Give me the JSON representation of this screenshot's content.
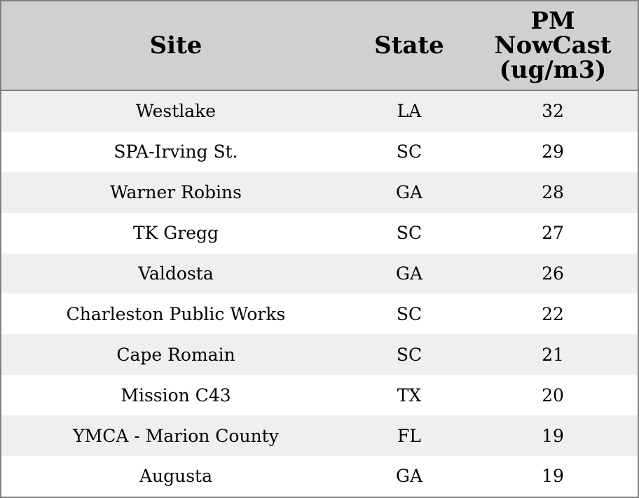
{
  "chart_data": {
    "type": "table",
    "columns": [
      "Site",
      "State",
      "PM\nNowCast\n(ug/m3)"
    ],
    "rows": [
      {
        "site": "Westlake",
        "state": "LA",
        "value": "32"
      },
      {
        "site": "SPA-Irving St.",
        "state": "SC",
        "value": "29"
      },
      {
        "site": "Warner Robins",
        "state": "GA",
        "value": "28"
      },
      {
        "site": "TK Gregg",
        "state": "SC",
        "value": "27"
      },
      {
        "site": "Valdosta",
        "state": "GA",
        "value": "26"
      },
      {
        "site": "Charleston Public Works",
        "state": "SC",
        "value": "22"
      },
      {
        "site": "Cape Romain",
        "state": "SC",
        "value": "21"
      },
      {
        "site": "Mission C43",
        "state": "TX",
        "value": "20"
      },
      {
        "site": "YMCA - Marion County",
        "state": "FL",
        "value": "19"
      },
      {
        "site": "Augusta",
        "state": "GA",
        "value": "19"
      }
    ],
    "header_color": "#d0d0d0",
    "stripe_color": "#efefef",
    "border_color": "#808080"
  }
}
